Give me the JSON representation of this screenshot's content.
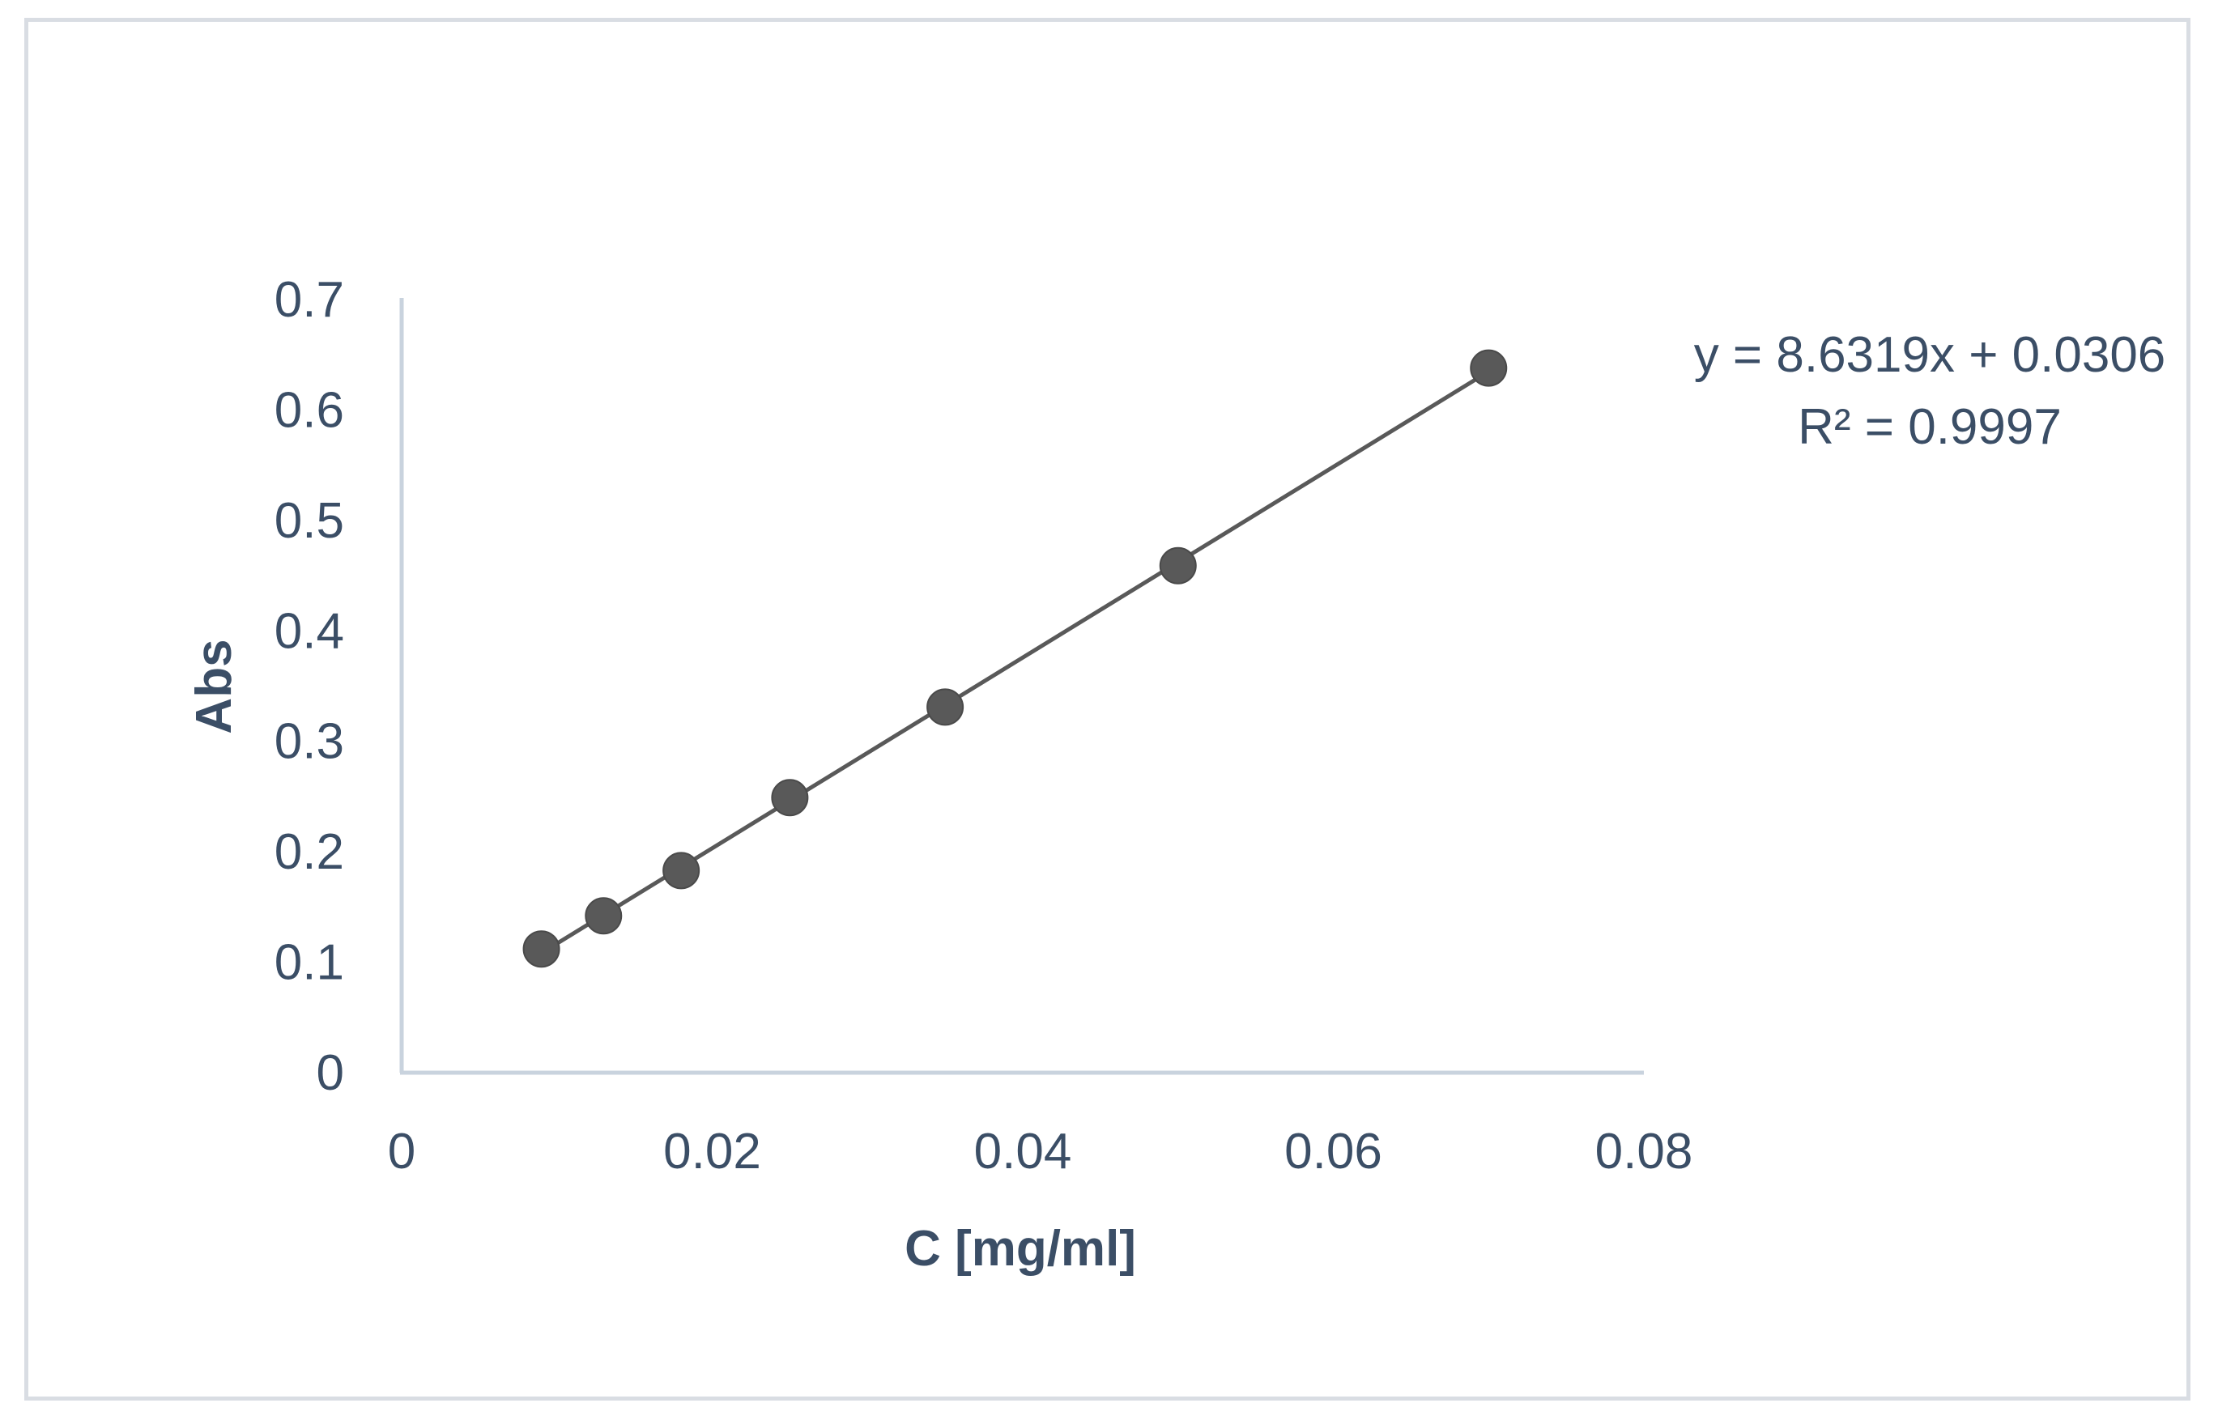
{
  "chart_data": {
    "type": "scatter",
    "xlabel": "C [mg/ml]",
    "ylabel": "Abs",
    "xlim": [
      0,
      0.08
    ],
    "ylim": [
      0,
      0.7
    ],
    "x_ticks": [
      "0",
      "0.02",
      "0.04",
      "0.06",
      "0.08"
    ],
    "y_ticks": [
      "0",
      "0.1",
      "0.2",
      "0.3",
      "0.4",
      "0.5",
      "0.6",
      "0.7"
    ],
    "grid": false,
    "legend": "none",
    "series": [
      {
        "x": [
          0.009,
          0.013,
          0.018,
          0.025,
          0.035,
          0.05,
          0.07
        ],
        "y": [
          0.112,
          0.142,
          0.183,
          0.249,
          0.331,
          0.459,
          0.638
        ]
      }
    ],
    "trendline": {
      "type": "linear",
      "slope": 8.6319,
      "intercept": 0.0306,
      "x_range": [
        0.009,
        0.07
      ]
    },
    "annotations": {
      "equation": "y = 8.6319x + 0.0306",
      "r_squared": "R² = 0.9997"
    },
    "colors": {
      "axis": "#c9d3de",
      "marker": "#595959",
      "trendline": "#595959",
      "text": "#3b4e66",
      "frame": "#d9dde3"
    }
  }
}
